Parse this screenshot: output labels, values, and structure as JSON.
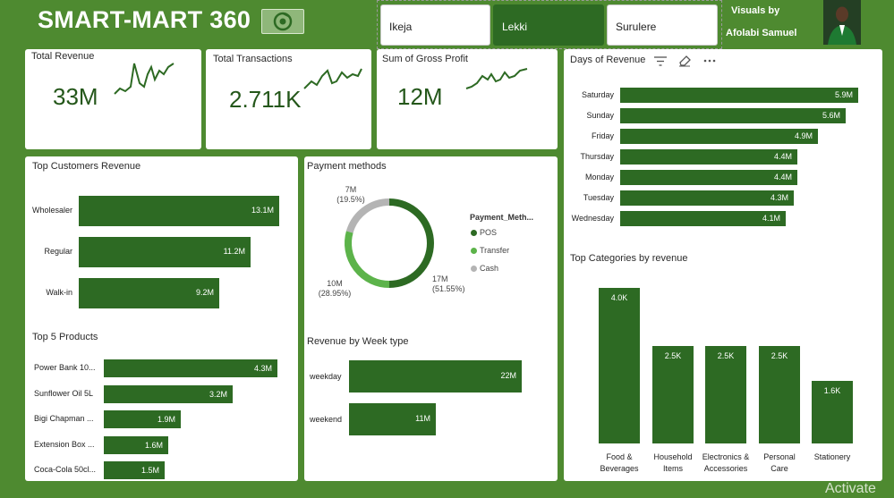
{
  "header": {
    "title": "SMART-MART 360",
    "credit_line1": "Visuals by",
    "credit_line2": "Afolabi Samuel"
  },
  "slicer": {
    "options": [
      "Ikeja",
      "Lekki",
      "Surulere"
    ],
    "selected": "Lekki"
  },
  "kpis": {
    "revenue": {
      "title": "Total Revenue",
      "value": "33M"
    },
    "transactions": {
      "title": "Total Transactions",
      "value": "2.711K"
    },
    "gross_profit": {
      "title": "Sum of Gross Profit",
      "value": "12M"
    }
  },
  "colors": {
    "bar": "#2d6a23",
    "pos": "#2d6a23",
    "transfer": "#5cb34a",
    "cash": "#b4b4b4"
  },
  "watermark": "Activate",
  "chart_data": [
    {
      "id": "customers",
      "type": "bar",
      "orientation": "horizontal",
      "title": "Top Customers Revenue",
      "categories": [
        "Wholesaler",
        "Regular",
        "Walk-in"
      ],
      "values": [
        13.1,
        11.2,
        9.2
      ],
      "labels": [
        "13.1M",
        "11.2M",
        "9.2M"
      ],
      "unit": "M"
    },
    {
      "id": "products",
      "type": "bar",
      "orientation": "horizontal",
      "title": "Top 5 Products",
      "categories": [
        "Power Bank 10...",
        "Sunflower Oil 5L",
        "Bigi Chapman ...",
        "Extension Box ...",
        "Coca-Cola 50cl..."
      ],
      "values": [
        4.3,
        3.2,
        1.9,
        1.6,
        1.5
      ],
      "labels": [
        "4.3M",
        "3.2M",
        "1.9M",
        "1.6M",
        "1.5M"
      ],
      "unit": "M"
    },
    {
      "id": "payment",
      "type": "pie",
      "variant": "donut",
      "title": "Payment methods",
      "legend_title": "Payment_Meth...",
      "categories": [
        "POS",
        "Transfer",
        "Cash"
      ],
      "values": [
        17,
        10,
        7
      ],
      "percents": [
        51.55,
        28.95,
        19.5
      ],
      "value_labels": [
        "17M",
        "10M",
        "7M"
      ],
      "percent_labels": [
        "(51.55%)",
        "(28.95%)",
        "(19.5%)"
      ],
      "unit": "M"
    },
    {
      "id": "weektype",
      "type": "bar",
      "orientation": "horizontal",
      "title": "Revenue by Week type",
      "categories": [
        "weekday",
        "weekend"
      ],
      "values": [
        22,
        11
      ],
      "labels": [
        "22M",
        "11M"
      ],
      "unit": "M"
    },
    {
      "id": "days",
      "type": "bar",
      "orientation": "horizontal",
      "title": "Days of Revenue",
      "categories": [
        "Saturday",
        "Sunday",
        "Friday",
        "Thursday",
        "Monday",
        "Tuesday",
        "Wednesday"
      ],
      "values": [
        5.9,
        5.6,
        4.9,
        4.4,
        4.4,
        4.3,
        4.1
      ],
      "labels": [
        "5.9M",
        "5.6M",
        "4.9M",
        "4.4M",
        "4.4M",
        "4.3M",
        "4.1M"
      ],
      "unit": "M"
    },
    {
      "id": "categories",
      "type": "bar",
      "orientation": "vertical",
      "title": "Top Categories by revenue",
      "categories": [
        "Food & Beverages",
        "Household Items",
        "Electronics & Accessories",
        "Personal Care",
        "Stationery"
      ],
      "category_lines": [
        [
          "Food &",
          "Beverages"
        ],
        [
          "Household",
          "Items"
        ],
        [
          "Electronics &",
          "Accessories"
        ],
        [
          "Personal",
          "Care"
        ],
        [
          "Stationery"
        ]
      ],
      "values": [
        4.0,
        2.5,
        2.5,
        2.5,
        1.6
      ],
      "labels": [
        "4.0K",
        "2.5K",
        "2.5K",
        "2.5K",
        "1.6K"
      ],
      "unit": "K"
    }
  ]
}
